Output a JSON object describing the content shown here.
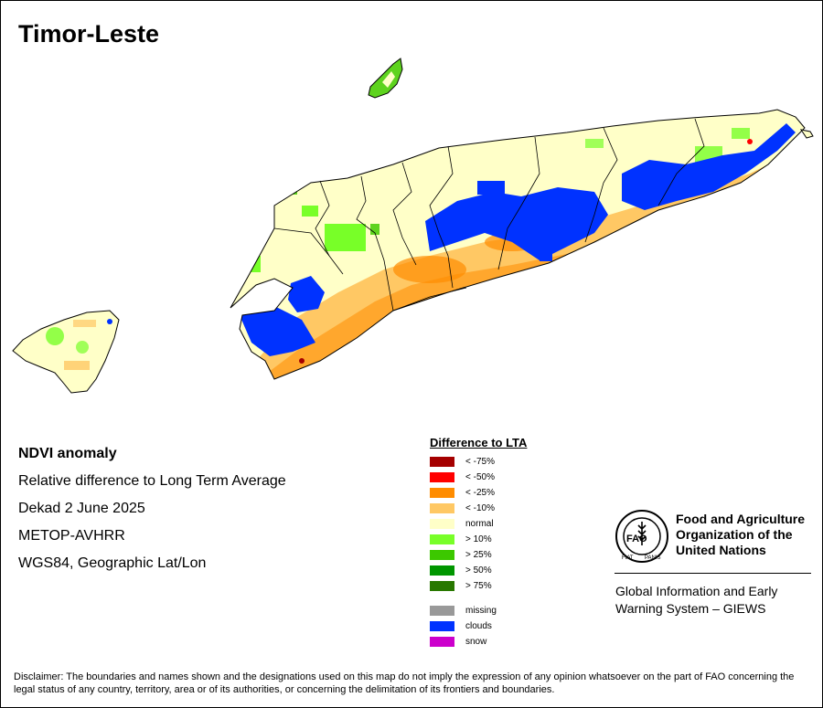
{
  "title": "Timor-Leste",
  "info": {
    "heading": "NDVI anomaly",
    "line1": "Relative difference to Long Term Average",
    "line2": "Dekad 2 June 2025",
    "line3": "METOP-AVHRR",
    "line4": "WGS84, Geographic Lat/Lon"
  },
  "legend": {
    "title": "Difference to LTA",
    "items": [
      {
        "label": "< -75%",
        "color": "#a50000"
      },
      {
        "label": "< -50%",
        "color": "#ff0000"
      },
      {
        "label": "< -25%",
        "color": "#ff8c00"
      },
      {
        "label": "< -10%",
        "color": "#ffc864"
      },
      {
        "label": "normal",
        "color": "#ffffc8"
      },
      {
        "label": "> 10%",
        "color": "#78ff28"
      },
      {
        "label": "> 25%",
        "color": "#3cc800"
      },
      {
        "label": "> 50%",
        "color": "#009600"
      },
      {
        "label": "> 75%",
        "color": "#287800"
      }
    ],
    "extra": [
      {
        "label": "missing",
        "color": "#999999"
      },
      {
        "label": "clouds",
        "color": "#0032ff"
      },
      {
        "label": "snow",
        "color": "#cc00cc"
      }
    ]
  },
  "logo": {
    "org_line1": "Food and Agriculture",
    "org_line2": "Organization of the",
    "org_line3": "United Nations",
    "emblem_text": "FAO",
    "motto_left": "FIAT",
    "motto_right": "PANIS",
    "giews_line1": "Global Information and Early",
    "giews_line2": "Warning System – GIEWS"
  },
  "disclaimer": "Disclaimer: The boundaries and names shown and the designations used on this map do not imply the expression of any opinion whatsoever on the part of FAO concerning the legal status of any country, territory, area or of its authorities, or concerning the delimitation of its frontiers and boundaries."
}
